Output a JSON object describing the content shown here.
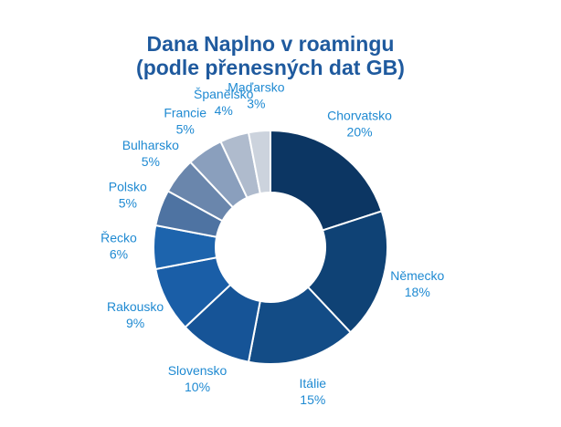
{
  "chart_data": {
    "type": "donut",
    "title": "Dana Naplno v roamingu",
    "subtitle": "(podle přenesných dat GB)",
    "categories": [
      "Chorvatsko",
      "Německo",
      "Itálie",
      "Slovensko",
      "Rakousko",
      "Řecko",
      "Polsko",
      "Bulharsko",
      "Francie",
      "Španělsko",
      "Maďarsko"
    ],
    "values": [
      20,
      18,
      15,
      10,
      9,
      6,
      5,
      5,
      5,
      4,
      3
    ],
    "value_labels": [
      "20%",
      "18%",
      "15%",
      "10%",
      "9%",
      "6%",
      "5%",
      "5%",
      "5%",
      "4%",
      "3%"
    ],
    "colors": [
      "#0c3663",
      "#0f4275",
      "#134c86",
      "#165497",
      "#1a5ea7",
      "#1d64ad",
      "#4e73a2",
      "#6a86ac",
      "#8a9fbd",
      "#afbbcd",
      "#ccd3dd"
    ]
  }
}
